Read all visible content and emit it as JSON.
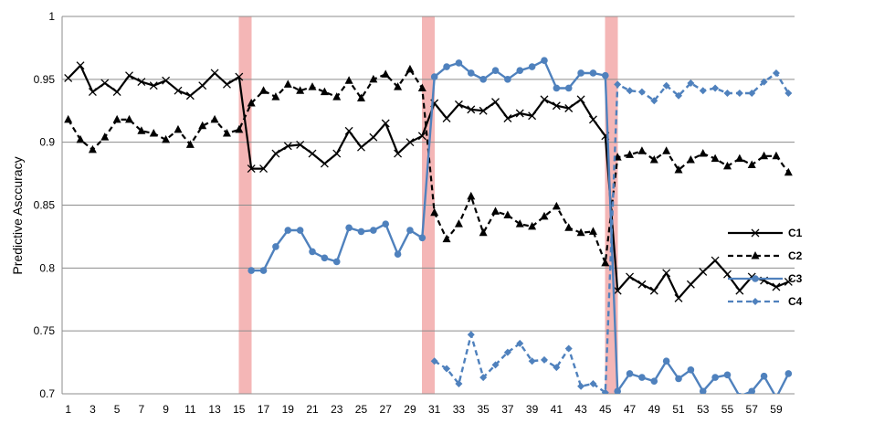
{
  "chart_data": {
    "type": "line",
    "title": "",
    "xlabel": "",
    "ylabel": "Predictive Asccuracy",
    "xlim": [
      1,
      60
    ],
    "ylim": [
      0.7,
      1.0
    ],
    "y_ticks": [
      "0.7",
      "0.75",
      "0.8",
      "0.85",
      "0.9",
      "0.95",
      "1"
    ],
    "x_tick_labels": [
      "1",
      "3",
      "5",
      "7",
      "9",
      "11",
      "13",
      "15",
      "17",
      "19",
      "21",
      "23",
      "25",
      "27",
      "29",
      "31",
      "33",
      "35",
      "37",
      "39",
      "41",
      "43",
      "45",
      "47",
      "49",
      "51",
      "53",
      "55",
      "57",
      "59"
    ],
    "grid": "horizontal",
    "legend_position": "right",
    "drift_points": [
      15,
      30,
      45
    ],
    "colors": {
      "C1": "#000000",
      "C2": "#000000",
      "C3": "#4f81bd",
      "C4": "#4f81bd",
      "drift_band": "#f4b6b6",
      "grid": "#8c8c8c"
    },
    "series": [
      {
        "name": "C1",
        "style": "solid",
        "marker": "x",
        "x": [
          1,
          2,
          3,
          4,
          5,
          6,
          7,
          8,
          9,
          10,
          11,
          12,
          13,
          14,
          15,
          16,
          17,
          18,
          19,
          20,
          21,
          22,
          23,
          24,
          25,
          26,
          27,
          28,
          29,
          30,
          31,
          32,
          33,
          34,
          35,
          36,
          37,
          38,
          39,
          40,
          41,
          42,
          43,
          44,
          45,
          46,
          47,
          48,
          49,
          50,
          51,
          52,
          53,
          54,
          55,
          56,
          57,
          58,
          59,
          60
        ],
        "y": [
          0.951,
          0.961,
          0.94,
          0.947,
          0.94,
          0.953,
          0.948,
          0.945,
          0.949,
          0.941,
          0.937,
          0.945,
          0.955,
          0.946,
          0.952,
          0.879,
          0.879,
          0.891,
          0.897,
          0.898,
          0.891,
          0.883,
          0.891,
          0.909,
          0.896,
          0.904,
          0.915,
          0.891,
          0.9,
          0.905,
          0.931,
          0.919,
          0.93,
          0.926,
          0.925,
          0.932,
          0.919,
          0.923,
          0.921,
          0.934,
          0.929,
          0.927,
          0.934,
          0.918,
          0.905,
          0.782,
          0.793,
          0.787,
          0.782,
          0.796,
          0.776,
          0.787,
          0.797,
          0.806,
          0.795,
          0.782,
          0.793,
          0.79,
          0.785,
          0.789
        ]
      },
      {
        "name": "C2",
        "style": "dashed",
        "marker": "triangle",
        "x": [
          1,
          2,
          3,
          4,
          5,
          6,
          7,
          8,
          9,
          10,
          11,
          12,
          13,
          14,
          15,
          16,
          17,
          18,
          19,
          20,
          21,
          22,
          23,
          24,
          25,
          26,
          27,
          28,
          29,
          30,
          31,
          32,
          33,
          34,
          35,
          36,
          37,
          38,
          39,
          40,
          41,
          42,
          43,
          44,
          45,
          46,
          47,
          48,
          49,
          50,
          51,
          52,
          53,
          54,
          55,
          56,
          57,
          58,
          59,
          60
        ],
        "y": [
          0.918,
          0.902,
          0.894,
          0.904,
          0.918,
          0.918,
          0.909,
          0.907,
          0.902,
          0.91,
          0.898,
          0.913,
          0.918,
          0.907,
          0.91,
          0.931,
          0.941,
          0.936,
          0.946,
          0.941,
          0.944,
          0.94,
          0.936,
          0.949,
          0.935,
          0.95,
          0.954,
          0.944,
          0.958,
          0.943,
          0.844,
          0.823,
          0.835,
          0.857,
          0.828,
          0.845,
          0.842,
          0.835,
          0.833,
          0.841,
          0.849,
          0.832,
          0.828,
          0.829,
          0.804,
          0.888,
          0.89,
          0.893,
          0.886,
          0.893,
          0.878,
          0.886,
          0.891,
          0.887,
          0.881,
          0.887,
          0.882,
          0.889,
          0.889,
          0.876
        ]
      },
      {
        "name": "C3",
        "style": "solid",
        "marker": "circle",
        "x": [
          16,
          17,
          18,
          19,
          20,
          21,
          22,
          23,
          24,
          25,
          26,
          27,
          28,
          29,
          30,
          31,
          32,
          33,
          34,
          35,
          36,
          37,
          38,
          39,
          40,
          41,
          42,
          43,
          44,
          45,
          46,
          47,
          48,
          49,
          50,
          51,
          52,
          53,
          54,
          55,
          56,
          57,
          58,
          59,
          60
        ],
        "y": [
          0.798,
          0.798,
          0.817,
          0.83,
          0.83,
          0.813,
          0.808,
          0.805,
          0.832,
          0.829,
          0.83,
          0.835,
          0.811,
          0.83,
          0.824,
          0.952,
          0.96,
          0.963,
          0.955,
          0.95,
          0.957,
          0.95,
          0.957,
          0.96,
          0.965,
          0.943,
          0.943,
          0.955,
          0.955,
          0.953,
          0.702,
          0.716,
          0.713,
          0.71,
          0.726,
          0.712,
          0.719,
          0.702,
          0.713,
          0.715,
          0.698,
          0.702,
          0.714,
          0.697,
          0.716
        ]
      },
      {
        "name": "C4",
        "style": "dashed",
        "marker": "diamond",
        "x": [
          31,
          32,
          33,
          34,
          35,
          36,
          37,
          38,
          39,
          40,
          41,
          42,
          43,
          44,
          45,
          46,
          47,
          48,
          49,
          50,
          51,
          52,
          53,
          54,
          55,
          56,
          57,
          58,
          59,
          60
        ],
        "y": [
          0.726,
          0.72,
          0.708,
          0.747,
          0.713,
          0.723,
          0.733,
          0.74,
          0.726,
          0.727,
          0.721,
          0.736,
          0.706,
          0.708,
          0.701,
          0.946,
          0.941,
          0.94,
          0.933,
          0.945,
          0.937,
          0.947,
          0.941,
          0.943,
          0.939,
          0.939,
          0.939,
          0.948,
          0.955,
          0.939
        ]
      }
    ]
  }
}
